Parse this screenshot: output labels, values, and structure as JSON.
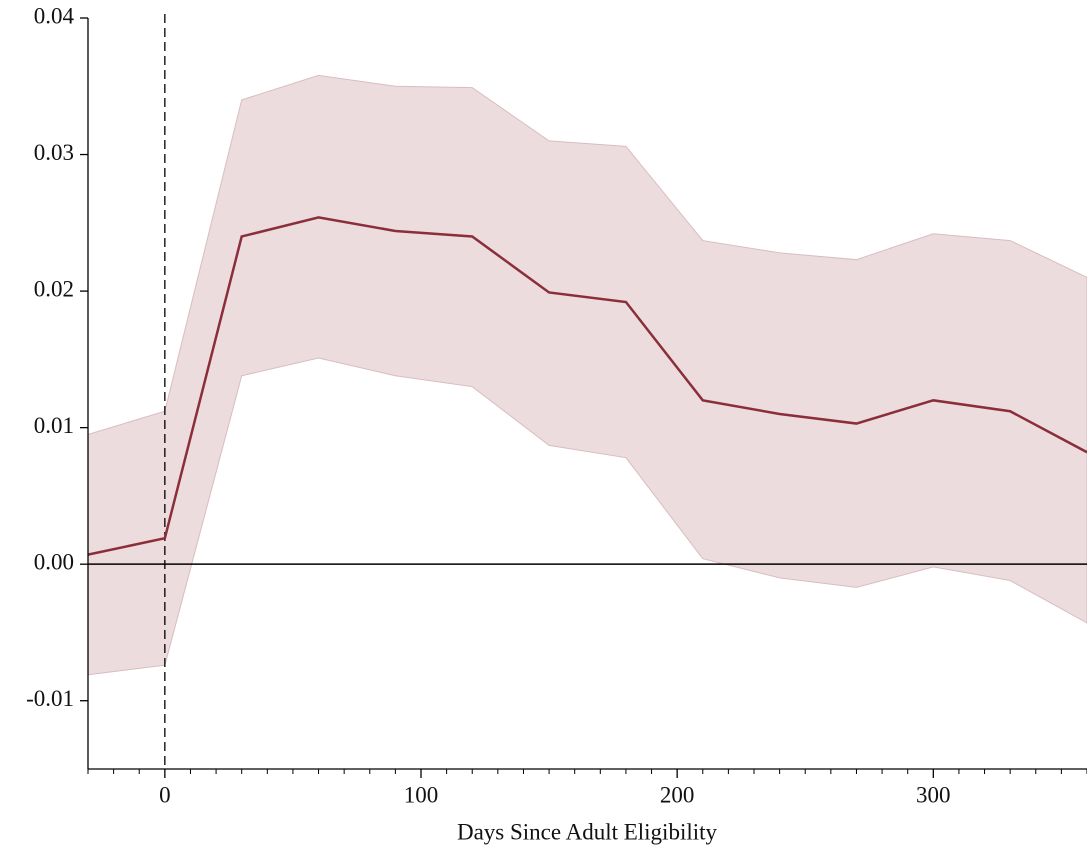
{
  "chart_data": {
    "type": "line_band",
    "x_label": "Days Since Adult Eligibility",
    "x": [
      -30,
      0,
      30,
      60,
      90,
      120,
      150,
      180,
      210,
      240,
      270,
      300,
      330,
      360
    ],
    "series": [
      {
        "color": "#8b2e3a",
        "band_color": "#ecdcde",
        "values": [
          0.0007,
          0.0019,
          0.024,
          0.0254,
          0.0244,
          0.024,
          0.0199,
          0.0192,
          0.012,
          0.011,
          0.0103,
          0.012,
          0.0112,
          0.0082
        ],
        "upper": [
          0.0095,
          0.0112,
          0.034,
          0.0358,
          0.035,
          0.0349,
          0.031,
          0.0306,
          0.0237,
          0.0228,
          0.0223,
          0.0242,
          0.0237,
          0.021
        ],
        "lower": [
          -0.0081,
          -0.0074,
          0.0138,
          0.0151,
          0.0138,
          0.013,
          0.0087,
          0.0078,
          0.0004,
          -0.001,
          -0.0017,
          -0.0002,
          -0.0012,
          -0.0043
        ]
      }
    ],
    "xlim": [
      -30,
      360
    ],
    "ylim": [
      -0.015,
      0.04
    ],
    "xticks": [
      0,
      100,
      200,
      300
    ],
    "x_minor_ticks": [
      -30,
      -20,
      -10,
      10,
      20,
      30,
      40,
      50,
      60,
      70,
      80,
      90,
      110,
      120,
      130,
      140,
      150,
      160,
      170,
      180,
      190,
      210,
      220,
      230,
      240,
      250,
      260,
      270,
      280,
      290,
      310,
      320,
      330,
      340,
      350,
      360
    ],
    "yticks": [
      -0.01,
      {
        "value": 0,
        "label": "0.00"
      },
      0.01,
      0.02,
      0.03,
      0.04
    ],
    "vline": 0,
    "hline": 0
  }
}
